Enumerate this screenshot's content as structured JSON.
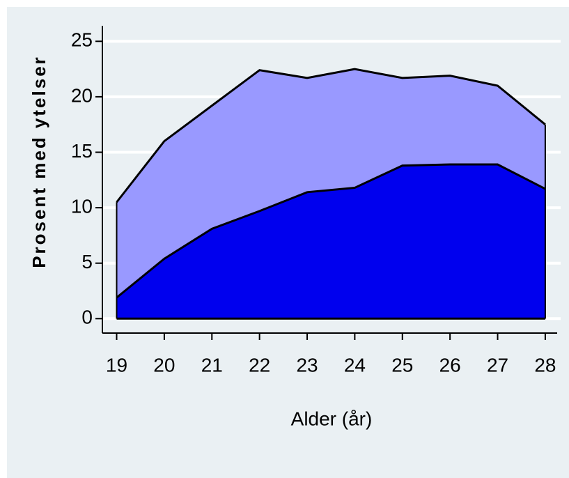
{
  "chart_data": {
    "type": "area",
    "y_label": "Prosent med ytelser",
    "x_label": "Alder (år)",
    "x": [
      19,
      20,
      21,
      22,
      23,
      24,
      25,
      26,
      27,
      28
    ],
    "series": [
      {
        "color": "#9999ff",
        "values": [
          10.5,
          16.0,
          19.2,
          22.4,
          21.7,
          22.5,
          21.7,
          21.9,
          21.0,
          17.5
        ]
      },
      {
        "color": "#0000ee",
        "values": [
          1.9,
          5.4,
          8.1,
          9.7,
          11.4,
          11.8,
          13.8,
          13.9,
          13.9,
          11.7
        ]
      }
    ],
    "xlim": [
      18.7,
      28.25
    ],
    "xticks": [
      19,
      20,
      21,
      22,
      23,
      24,
      25,
      26,
      27,
      28
    ],
    "ylim": [
      -1.3,
      26.4
    ],
    "yticks": [
      0,
      5,
      10,
      15,
      20,
      25
    ],
    "grid": true
  }
}
